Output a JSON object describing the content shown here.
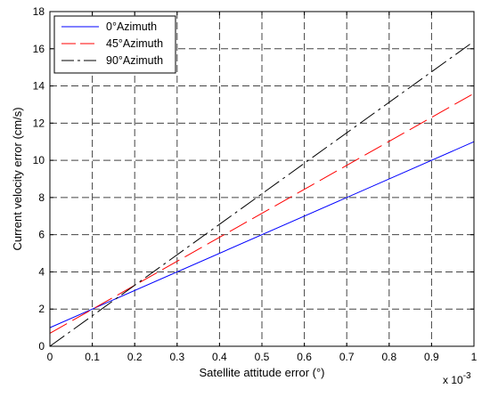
{
  "chart_data": {
    "type": "line",
    "title": "",
    "xlabel": "Satellite attitude error (°)",
    "ylabel": "Current velocity error (cm/s)",
    "x_multiplier_label": "x 10",
    "x_multiplier_exponent": "-3",
    "xlim": [
      0,
      1
    ],
    "ylim": [
      0,
      18
    ],
    "xticks": [
      0,
      0.1,
      0.2,
      0.3,
      0.4,
      0.5,
      0.6,
      0.7,
      0.8,
      0.9,
      1
    ],
    "xtick_labels": [
      "0",
      "0.1",
      "0.2",
      "0.3",
      "0.4",
      "0.5",
      "0.6",
      "0.7",
      "0.8",
      "0.9",
      "1"
    ],
    "yticks": [
      0,
      2,
      4,
      6,
      8,
      10,
      12,
      14,
      16,
      18
    ],
    "ytick_labels": [
      "0",
      "2",
      "4",
      "6",
      "8",
      "10",
      "12",
      "14",
      "16",
      "18"
    ],
    "grid": true,
    "legend_position": "top-left",
    "series": [
      {
        "name": "0°Azimuth",
        "color": "#0000ff",
        "style": "solid",
        "x": [
          0,
          1
        ],
        "y": [
          1.0,
          11.0
        ]
      },
      {
        "name": "45°Azimuth",
        "color": "#ff0000",
        "style": "dashed",
        "x": [
          0,
          1
        ],
        "y": [
          0.7,
          13.6
        ]
      },
      {
        "name": "90°Azimuth",
        "color": "#000000",
        "style": "dashdot",
        "x": [
          0,
          1
        ],
        "y": [
          0.0,
          16.4
        ]
      }
    ]
  }
}
